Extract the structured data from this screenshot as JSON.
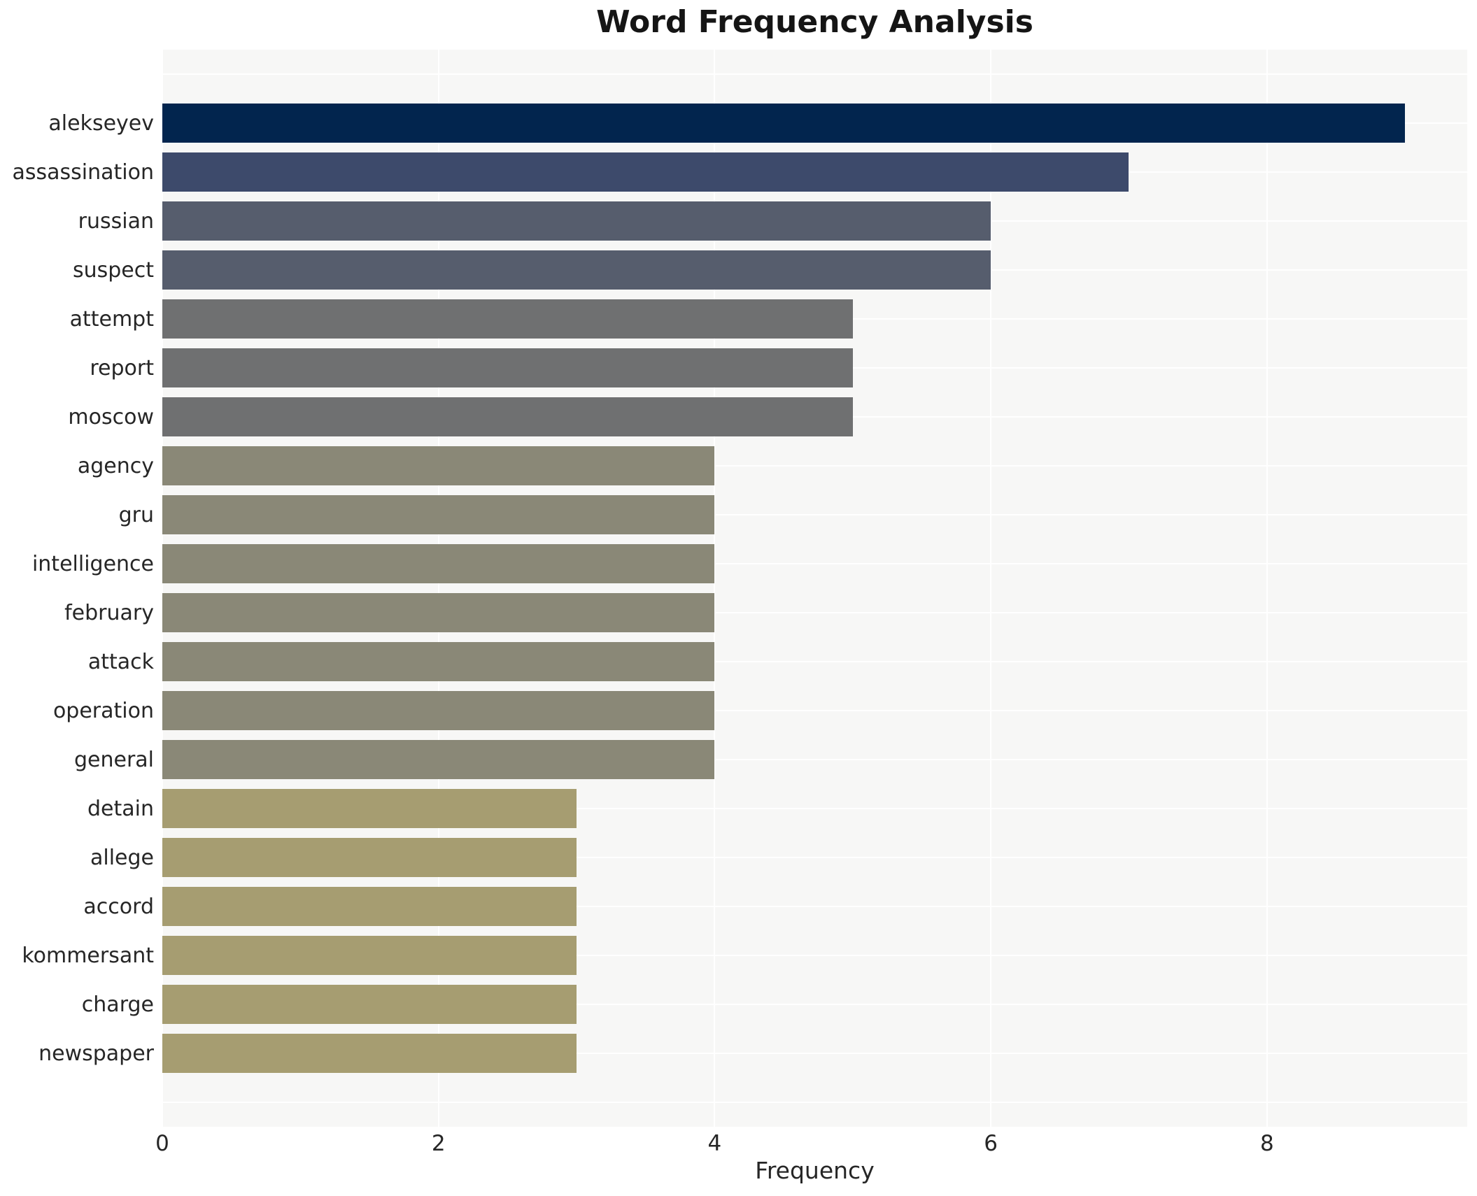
{
  "chart_data": {
    "type": "bar",
    "orientation": "horizontal",
    "title": "Word Frequency Analysis",
    "xlabel": "Frequency",
    "ylabel": "",
    "categories": [
      "alekseyev",
      "assassination",
      "russian",
      "suspect",
      "attempt",
      "report",
      "moscow",
      "agency",
      "gru",
      "intelligence",
      "february",
      "attack",
      "operation",
      "general",
      "detain",
      "allege",
      "accord",
      "kommersant",
      "charge",
      "newspaper"
    ],
    "values": [
      9,
      7,
      6,
      6,
      5,
      5,
      5,
      4,
      4,
      4,
      4,
      4,
      4,
      4,
      3,
      3,
      3,
      3,
      3,
      3
    ],
    "bar_colors": [
      "#02254e",
      "#3d4a6b",
      "#565d6d",
      "#565d6d",
      "#6f7071",
      "#6f7071",
      "#6f7071",
      "#8a8877",
      "#8a8877",
      "#8a8877",
      "#8a8877",
      "#8a8877",
      "#8a8877",
      "#8a8877",
      "#a69d71",
      "#a69d71",
      "#a69d71",
      "#a69d71",
      "#a69d71",
      "#a69d71"
    ],
    "x_tick_labels": [
      "0",
      "2",
      "4",
      "6",
      "8"
    ],
    "x_tick_values": [
      0,
      2,
      4,
      6,
      8
    ],
    "xlim": [
      0,
      9.45
    ],
    "grid": "white-grid-on-light-gray",
    "legend": "none",
    "plot_bg": "#f7f7f6",
    "figure_bg": "#ffffff",
    "text_color": "#262626"
  }
}
